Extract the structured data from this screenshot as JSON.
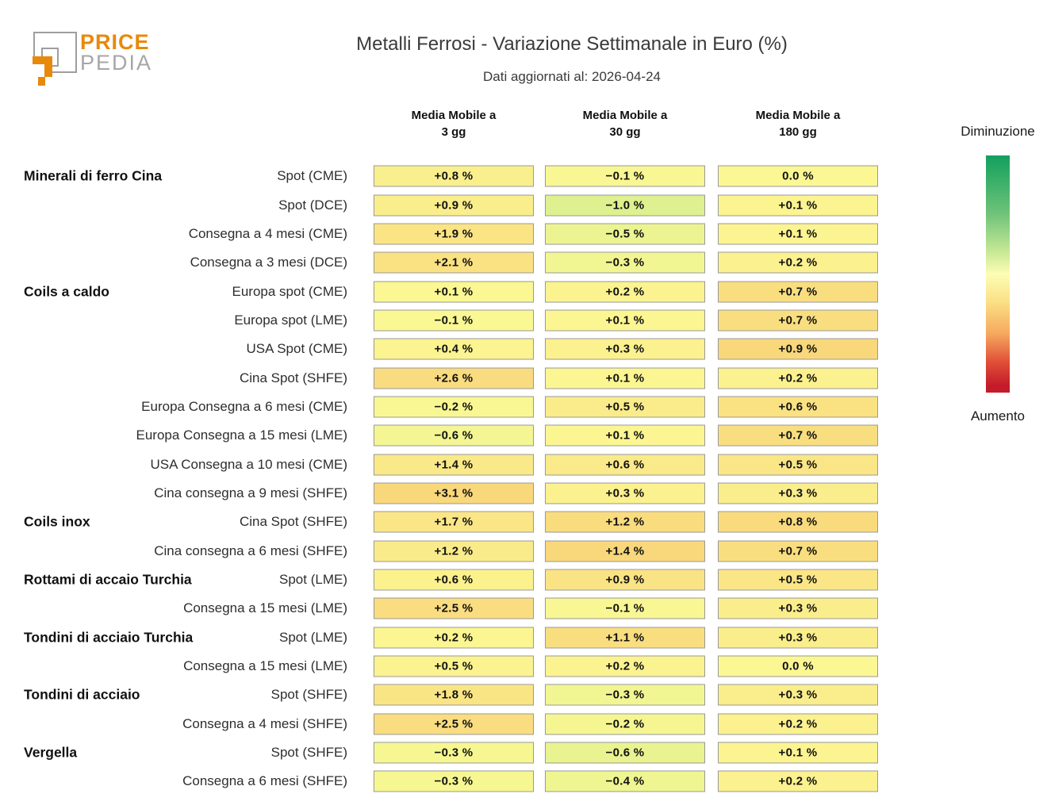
{
  "logo": {
    "price": "PRICE",
    "pedia": "PEDIA"
  },
  "header": {
    "title": "Metalli Ferrosi - Variazione Settimanale in Euro (%)",
    "subtitle": "Dati aggiornati al: 2026-04-24"
  },
  "legend": {
    "top_label": "Diminuzione",
    "bottom_label": "Aumento",
    "gradient_stops": [
      [
        "#12a05f",
        "0%"
      ],
      [
        "#2fab66",
        "8%"
      ],
      [
        "#71c47a",
        "25%"
      ],
      [
        "#c3e794",
        "40%"
      ],
      [
        "#fdfdb5",
        "50%"
      ],
      [
        "#fbdf85",
        "62%"
      ],
      [
        "#f6a95f",
        "75%"
      ],
      [
        "#e05038",
        "87%"
      ],
      [
        "#c41b2b",
        "97%"
      ]
    ]
  },
  "chart_data": {
    "type": "heatmap",
    "title": "Metalli Ferrosi - Variazione Settimanale in Euro (%)",
    "subtitle": "Dati aggiornati al: 2026-04-24",
    "value_unit": "%",
    "legend": {
      "decrease": "Diminuzione",
      "increase": "Aumento"
    },
    "columns": [
      {
        "line1": "Media Mobile a",
        "line2": "3 gg"
      },
      {
        "line1": "Media Mobile a",
        "line2": "30 gg"
      },
      {
        "line1": "Media Mobile a",
        "line2": "180 gg"
      }
    ],
    "color_scale": {
      "negative_anchor": "#d2ed8d",
      "zero_anchor": "#fbf893",
      "positive_anchor": "#f9d77b",
      "cell_border": "#999999",
      "normalization": "per-column max absolute value"
    },
    "rows": [
      {
        "group": "Minerali di ferro Cina",
        "label": "Spot (CME)",
        "values": [
          0.8,
          -0.1,
          0.0
        ]
      },
      {
        "group": "",
        "label": "Spot (DCE)",
        "values": [
          0.9,
          -1.0,
          0.1
        ]
      },
      {
        "group": "",
        "label": "Consegna a 4 mesi (CME)",
        "values": [
          1.9,
          -0.5,
          0.1
        ]
      },
      {
        "group": "",
        "label": "Consegna a 3 mesi (DCE)",
        "values": [
          2.1,
          -0.3,
          0.2
        ]
      },
      {
        "group": "Coils a caldo",
        "label": "Europa spot (CME)",
        "values": [
          0.1,
          0.2,
          0.7
        ]
      },
      {
        "group": "",
        "label": "Europa spot (LME)",
        "values": [
          -0.1,
          0.1,
          0.7
        ]
      },
      {
        "group": "",
        "label": "USA Spot (CME)",
        "values": [
          0.4,
          0.3,
          0.9
        ]
      },
      {
        "group": "",
        "label": "Cina Spot (SHFE)",
        "values": [
          2.6,
          0.1,
          0.2
        ]
      },
      {
        "group": "",
        "label": "Europa Consegna a 6 mesi (CME)",
        "values": [
          -0.2,
          0.5,
          0.6
        ]
      },
      {
        "group": "",
        "label": "Europa Consegna a 15 mesi (LME)",
        "values": [
          -0.6,
          0.1,
          0.7
        ]
      },
      {
        "group": "",
        "label": "USA Consegna a 10 mesi (CME)",
        "values": [
          1.4,
          0.6,
          0.5
        ]
      },
      {
        "group": "",
        "label": "Cina consegna a 9 mesi (SHFE)",
        "values": [
          3.1,
          0.3,
          0.3
        ]
      },
      {
        "group": "Coils inox",
        "label": "Cina Spot (SHFE)",
        "values": [
          1.7,
          1.2,
          0.8
        ]
      },
      {
        "group": "",
        "label": "Cina consegna a 6 mesi (SHFE)",
        "values": [
          1.2,
          1.4,
          0.7
        ]
      },
      {
        "group": "Rottami di accaio Turchia",
        "label": "Spot (LME)",
        "values": [
          0.6,
          0.9,
          0.5
        ]
      },
      {
        "group": "",
        "label": "Consegna a 15 mesi (LME)",
        "values": [
          2.5,
          -0.1,
          0.3
        ]
      },
      {
        "group": "Tondini di acciaio Turchia",
        "label": "Spot (LME)",
        "values": [
          0.2,
          1.1,
          0.3
        ]
      },
      {
        "group": "",
        "label": "Consegna a 15 mesi (LME)",
        "values": [
          0.5,
          0.2,
          0.0
        ]
      },
      {
        "group": "Tondini di acciaio",
        "label": "Spot (SHFE)",
        "values": [
          1.8,
          -0.3,
          0.3
        ]
      },
      {
        "group": "",
        "label": "Consegna a 4 mesi (SHFE)",
        "values": [
          2.5,
          -0.2,
          0.2
        ]
      },
      {
        "group": "Vergella",
        "label": "Spot (SHFE)",
        "values": [
          -0.3,
          -0.6,
          0.1
        ]
      },
      {
        "group": "",
        "label": "Consegna a 6 mesi (SHFE)",
        "values": [
          -0.3,
          -0.4,
          0.2
        ]
      }
    ]
  },
  "colors": {
    "brand_orange": "#e8890c",
    "brand_gray": "#a6a6a6"
  }
}
